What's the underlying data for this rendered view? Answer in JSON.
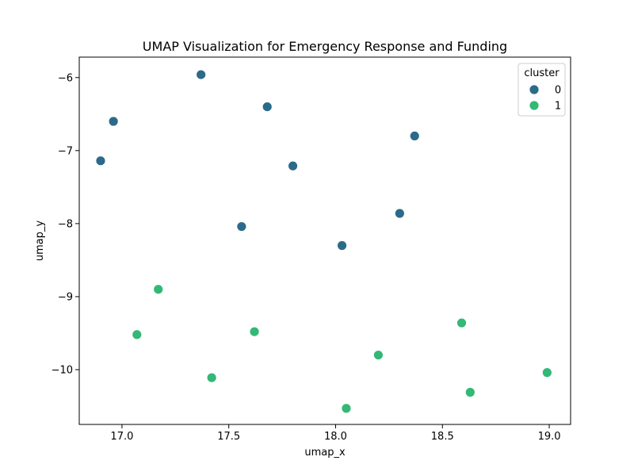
{
  "chart_data": {
    "type": "scatter",
    "title": "UMAP Visualization for Emergency Response and Funding",
    "xlabel": "umap_x",
    "ylabel": "umap_y",
    "xlim": [
      16.8,
      19.1
    ],
    "ylim": [
      -10.75,
      -5.72
    ],
    "xticks": [
      17.0,
      17.5,
      18.0,
      18.5,
      19.0
    ],
    "xtick_labels": [
      "17.0",
      "17.5",
      "18.0",
      "18.5",
      "19.0"
    ],
    "yticks": [
      -6,
      -7,
      -8,
      -9,
      -10
    ],
    "ytick_labels": [
      "−6",
      "−7",
      "−8",
      "−9",
      "−10"
    ],
    "grid": false,
    "legend": {
      "title": "cluster",
      "placement": "top-right",
      "entries": [
        {
          "label": "0",
          "color": "#2c6a8a"
        },
        {
          "label": "1",
          "color": "#33b876"
        }
      ]
    },
    "series": [
      {
        "name": "0",
        "color": "#2c6a8a",
        "points": [
          {
            "x": 17.37,
            "y": -5.96
          },
          {
            "x": 16.96,
            "y": -6.6
          },
          {
            "x": 17.68,
            "y": -6.4
          },
          {
            "x": 18.37,
            "y": -6.8
          },
          {
            "x": 16.9,
            "y": -7.14
          },
          {
            "x": 17.8,
            "y": -7.21
          },
          {
            "x": 18.3,
            "y": -7.86
          },
          {
            "x": 17.56,
            "y": -8.04
          },
          {
            "x": 18.03,
            "y": -8.3
          }
        ]
      },
      {
        "name": "1",
        "color": "#33b876",
        "points": [
          {
            "x": 17.17,
            "y": -8.9
          },
          {
            "x": 17.07,
            "y": -9.52
          },
          {
            "x": 17.62,
            "y": -9.48
          },
          {
            "x": 18.59,
            "y": -9.36
          },
          {
            "x": 18.2,
            "y": -9.8
          },
          {
            "x": 18.99,
            "y": -10.04
          },
          {
            "x": 17.42,
            "y": -10.11
          },
          {
            "x": 18.63,
            "y": -10.31
          },
          {
            "x": 18.05,
            "y": -10.53
          }
        ]
      }
    ]
  }
}
